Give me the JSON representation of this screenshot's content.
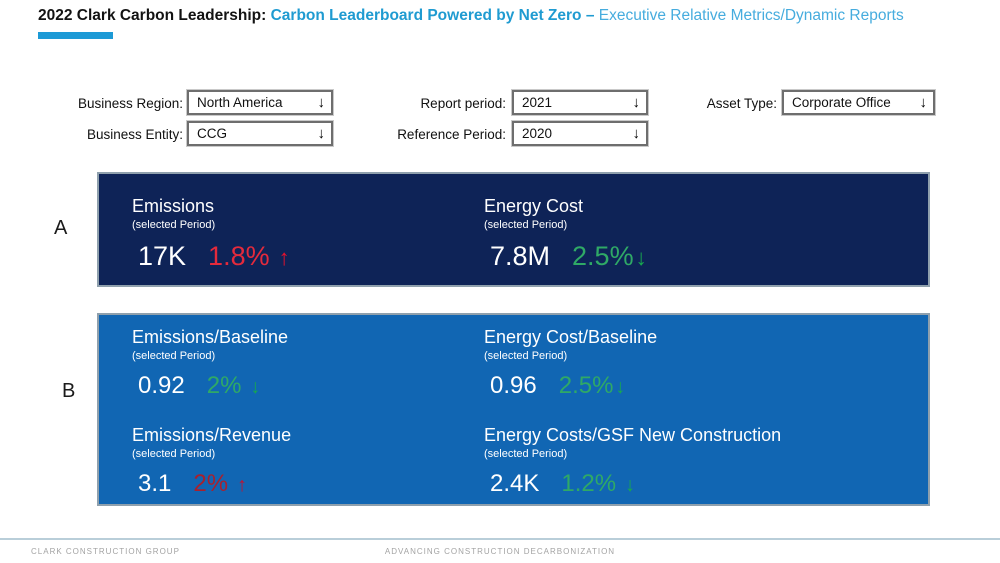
{
  "header": {
    "title_prefix": "2022 Clark Carbon Leadership: ",
    "title_brand": "Carbon Leaderboard Powered by Net Zero – ",
    "title_suffix": "Executive Relative Metrics/Dynamic Reports"
  },
  "filters": {
    "business_region": {
      "label": "Business Region:",
      "value": "North America"
    },
    "business_entity": {
      "label": "Business Entity:",
      "value": "CCG"
    },
    "report_period": {
      "label": "Report period:",
      "value": "2021"
    },
    "reference_period": {
      "label": "Reference Period:",
      "value": "2020"
    },
    "asset_type": {
      "label": "Asset Type:",
      "value": "Corporate Office"
    }
  },
  "ui": {
    "dropdown_arrow": "↓"
  },
  "sections": {
    "a": {
      "label": "A",
      "cards": [
        {
          "title": "Emissions",
          "subtitle": "(selected Period)",
          "value": "17K",
          "delta": "1.8%",
          "arrow": "↑",
          "direction": "up",
          "sentiment": "negative"
        },
        {
          "title": "Energy Cost",
          "subtitle": "(selected Period)",
          "value": "7.8M",
          "delta": "2.5%",
          "arrow": "↓",
          "direction": "down",
          "sentiment": "positive"
        }
      ]
    },
    "b": {
      "label": "B",
      "cards": [
        {
          "title": "Emissions/Baseline",
          "subtitle": "(selected Period)",
          "value": "0.92",
          "delta": "2%",
          "arrow": "↓",
          "direction": "down",
          "sentiment": "positive"
        },
        {
          "title": "Energy Cost/Baseline",
          "subtitle": "(selected Period)",
          "value": "0.96",
          "delta": "2.5%",
          "arrow": "↓",
          "direction": "down",
          "sentiment": "positive"
        },
        {
          "title": "Emissions/Revenue",
          "subtitle": "(selected Period)",
          "value": "3.1",
          "delta": "2%",
          "arrow": "↑",
          "direction": "up",
          "sentiment": "negative"
        },
        {
          "title": "Energy Costs/GSF New Construction",
          "subtitle": "(selected Period)",
          "value": "2.4K",
          "delta": "1.2%",
          "arrow": "↓",
          "direction": "down",
          "sentiment": "positive"
        }
      ]
    }
  },
  "footer": {
    "left": "CLARK CONSTRUCTION GROUP",
    "center": "ADVANCING CONSTRUCTION DECARBONIZATION"
  },
  "colors": {
    "accent_teal": "#1C9AD6",
    "title_brand_blue": "#1F9BD1",
    "title_suffix_blue": "#46ACDE",
    "panel_a_bg": "#0E2357",
    "panel_b_bg": "#1166B3",
    "panel_border": "#8fa0ad",
    "positive_green": "#2FA966",
    "negative_red_bright": "#E42A3C",
    "negative_red_dark": "#A8212E",
    "footer_gray": "#a3a3a3"
  }
}
